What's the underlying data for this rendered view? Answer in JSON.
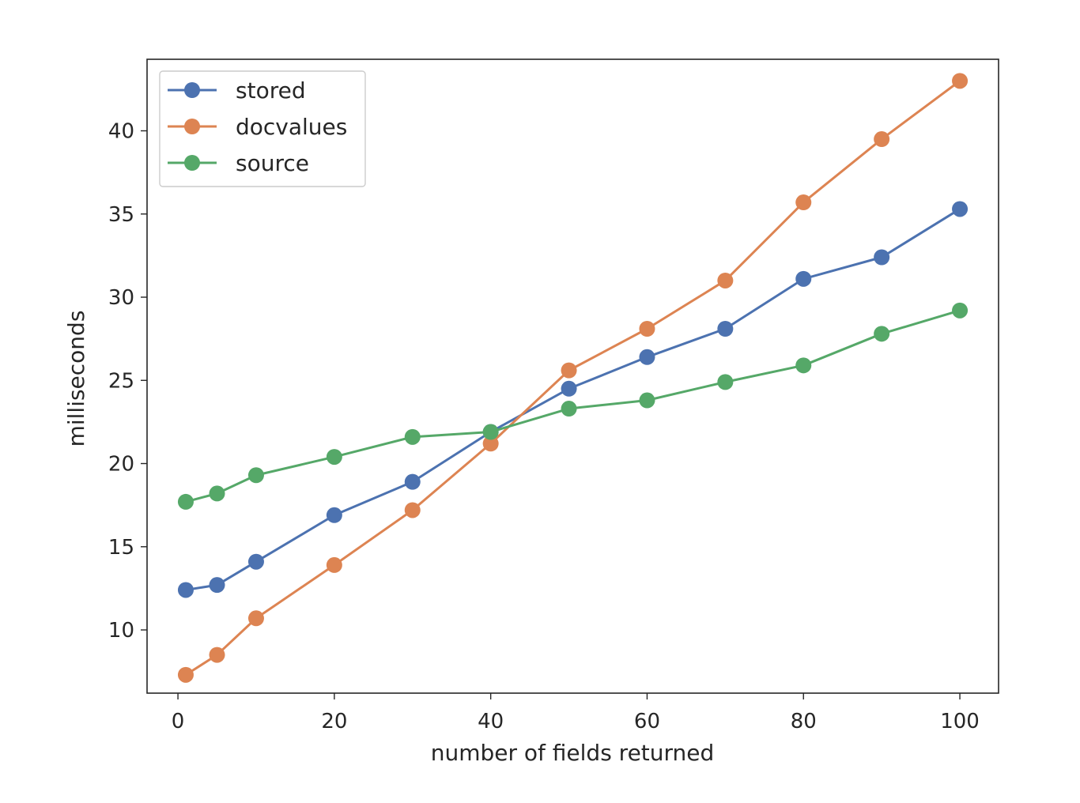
{
  "chart_data": {
    "type": "line",
    "title": "",
    "xlabel": "number of fields returned",
    "ylabel": "milliseconds",
    "xlim": [
      -3.95,
      104.95
    ],
    "ylim": [
      6.2,
      44.3
    ],
    "xticks": [
      0,
      20,
      40,
      60,
      80,
      100
    ],
    "yticks": [
      10,
      15,
      20,
      25,
      30,
      35,
      40
    ],
    "x": [
      1,
      5,
      10,
      20,
      30,
      40,
      50,
      60,
      70,
      80,
      90,
      100
    ],
    "series": [
      {
        "name": "stored",
        "color": "#4c72b0",
        "values": [
          12.4,
          12.7,
          14.1,
          16.9,
          18.9,
          21.9,
          24.5,
          26.4,
          28.1,
          31.1,
          32.4,
          35.3
        ]
      },
      {
        "name": "docvalues",
        "color": "#dd8452",
        "values": [
          7.3,
          8.5,
          10.7,
          13.9,
          17.2,
          21.2,
          25.6,
          28.1,
          31.0,
          35.7,
          39.5,
          43.0
        ]
      },
      {
        "name": "source",
        "color": "#55a868",
        "values": [
          17.7,
          18.2,
          19.3,
          20.4,
          21.6,
          21.9,
          23.3,
          23.8,
          24.9,
          25.9,
          27.8,
          29.2
        ]
      }
    ],
    "legend_position": "top-left",
    "grid": false
  }
}
